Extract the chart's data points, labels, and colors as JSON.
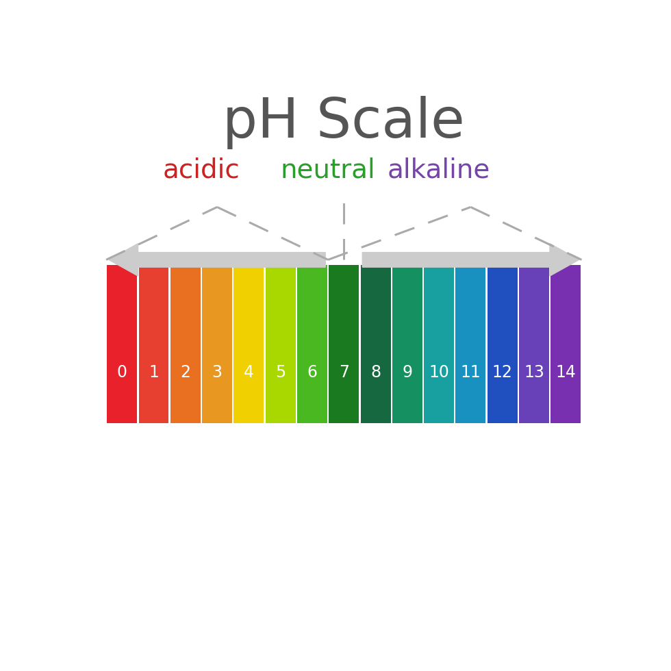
{
  "title": "pH Scale",
  "title_color": "#555555",
  "title_fontsize": 58,
  "labels": [
    "acidic",
    "neutral",
    "alkaline"
  ],
  "label_colors": [
    "#cc2222",
    "#2a9e2a",
    "#7744aa"
  ],
  "label_fontsize": 28,
  "ph_values": [
    0,
    1,
    2,
    3,
    4,
    5,
    6,
    7,
    8,
    9,
    10,
    11,
    12,
    13,
    14
  ],
  "ph_colors": [
    "#e8212a",
    "#e84030",
    "#e87020",
    "#e89820",
    "#f0d000",
    "#a8d800",
    "#4ab820",
    "#1a7a20",
    "#156840",
    "#159060",
    "#18a0a0",
    "#1890c0",
    "#2050c0",
    "#6840b8",
    "#7830b0"
  ],
  "background_color": "#ffffff",
  "arrow_color": "#cccccc",
  "triangle_color": "#aaaaaa",
  "num_color": "#ffffff",
  "num_fontsize": 17
}
